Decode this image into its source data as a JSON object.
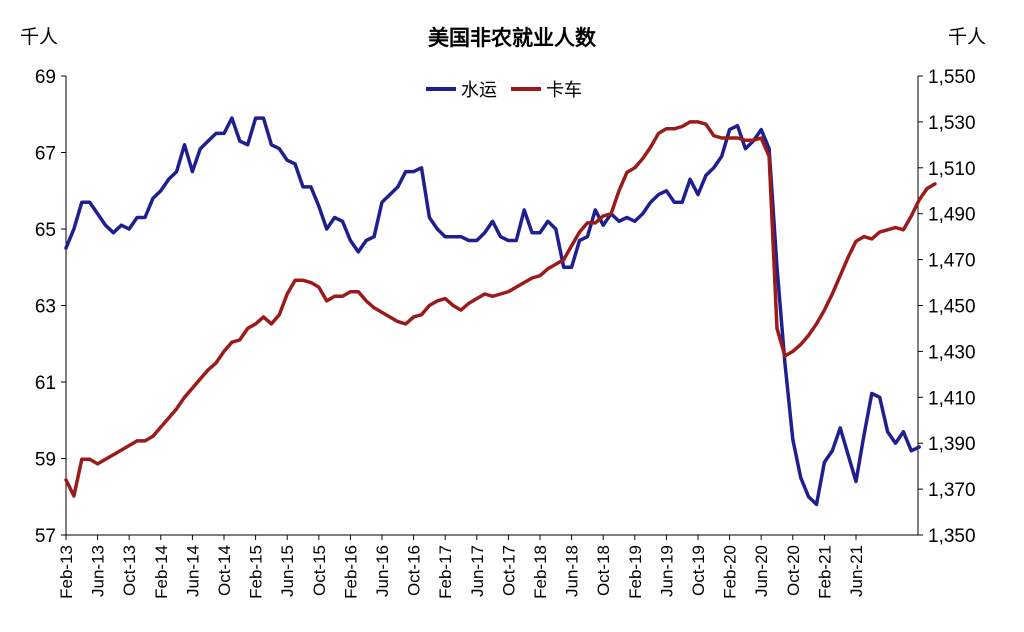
{
  "chart_data": {
    "type": "line",
    "title": "美国非农就业人数",
    "y_left_unit": "千人",
    "y_right_unit": "千人",
    "x_tick_labels": [
      "Feb-13",
      "Jun-13",
      "Oct-13",
      "Feb-14",
      "Jun-14",
      "Oct-14",
      "Feb-15",
      "Jun-15",
      "Oct-15",
      "Feb-16",
      "Jun-16",
      "Oct-16",
      "Feb-17",
      "Jun-17",
      "Oct-17",
      "Feb-18",
      "Jun-18",
      "Oct-18",
      "Feb-19",
      "Jun-19",
      "Oct-19",
      "Feb-20",
      "Jun-20",
      "Oct-20",
      "Feb-21",
      "Jun-21"
    ],
    "x_start": "2013-02",
    "y_left_ticks": [
      "69",
      "67",
      "65",
      "63",
      "61",
      "59",
      "57"
    ],
    "y_right_ticks": [
      "1,550",
      "1,530",
      "1,510",
      "1,490",
      "1,470",
      "1,450",
      "1,430",
      "1,410",
      "1,390",
      "1,370",
      "1,350"
    ],
    "y_left_range": [
      57,
      69
    ],
    "y_right_range": [
      1350,
      1550
    ],
    "legend_position": "top-center",
    "grid": false,
    "series": [
      {
        "name": "水运",
        "axis": "left",
        "color": "#1f1f8f",
        "values": [
          64.5,
          65.0,
          65.7,
          65.7,
          65.4,
          65.1,
          64.9,
          65.1,
          65.0,
          65.3,
          65.3,
          65.8,
          66.0,
          66.3,
          66.5,
          67.2,
          66.5,
          67.1,
          67.3,
          67.5,
          67.5,
          67.9,
          67.3,
          67.2,
          67.9,
          67.9,
          67.2,
          67.1,
          66.8,
          66.7,
          66.1,
          66.1,
          65.6,
          65.0,
          65.3,
          65.2,
          64.7,
          64.4,
          64.7,
          64.8,
          65.7,
          65.9,
          66.1,
          66.5,
          66.5,
          66.6,
          65.3,
          65.0,
          64.8,
          64.8,
          64.8,
          64.7,
          64.7,
          64.9,
          65.2,
          64.8,
          64.7,
          64.7,
          65.5,
          64.9,
          64.9,
          65.2,
          65.0,
          64.0,
          64.0,
          64.7,
          64.8,
          65.5,
          65.1,
          65.4,
          65.2,
          65.3,
          65.2,
          65.4,
          65.7,
          65.9,
          66.0,
          65.7,
          65.7,
          66.3,
          65.9,
          66.4,
          66.6,
          66.9,
          67.6,
          67.7,
          67.1,
          67.3,
          67.6,
          67.1,
          64.0,
          61.5,
          59.5,
          58.5,
          58.0,
          57.8,
          58.9,
          59.2,
          59.8,
          59.1,
          58.4,
          59.6,
          60.7,
          60.6,
          59.7,
          59.4,
          59.7,
          59.2,
          59.3
        ]
      },
      {
        "name": "卡车",
        "axis": "right",
        "color": "#9b1b1b",
        "values": [
          1374,
          1367,
          1383,
          1383,
          1381,
          1383,
          1385,
          1387,
          1389,
          1391,
          1391,
          1393,
          1397,
          1401,
          1405,
          1410,
          1414,
          1418,
          1422,
          1425,
          1430,
          1434,
          1435,
          1440,
          1442,
          1445,
          1442,
          1446,
          1455,
          1461,
          1461,
          1460,
          1458,
          1452,
          1454,
          1454,
          1456,
          1456,
          1452,
          1449,
          1447,
          1445,
          1443,
          1442,
          1445,
          1446,
          1450,
          1452,
          1453,
          1450,
          1448,
          1451,
          1453,
          1455,
          1454,
          1455,
          1456,
          1458,
          1460,
          1462,
          1463,
          1466,
          1468,
          1470,
          1476,
          1482,
          1486,
          1486,
          1489,
          1490,
          1500,
          1508,
          1510,
          1514,
          1519,
          1525,
          1527,
          1527,
          1528,
          1530,
          1530,
          1529,
          1524,
          1523,
          1523,
          1523,
          1522,
          1522,
          1523,
          1515,
          1440,
          1428,
          1430,
          1433,
          1437,
          1442,
          1448,
          1455,
          1463,
          1471,
          1478,
          1480,
          1479,
          1482,
          1483,
          1484,
          1483,
          1489,
          1496,
          1501,
          1503
        ]
      }
    ]
  }
}
